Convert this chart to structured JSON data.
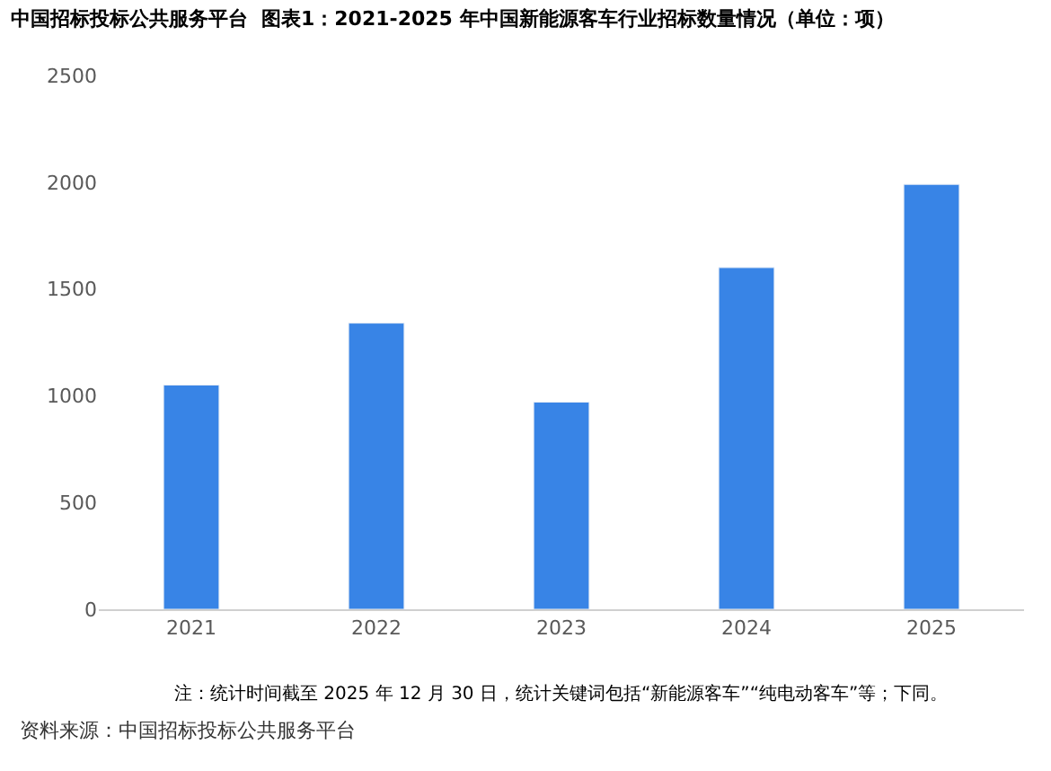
{
  "chart_data": {
    "type": "bar",
    "title": "中国招标投标公共服务平台  图表1：2021-2025 年中国新能源客车行业招标数量情况（单位：项）",
    "categories": [
      "2021",
      "2022",
      "2023",
      "2024",
      "2025"
    ],
    "values": [
      1050,
      1340,
      970,
      1600,
      1990
    ],
    "color": "#3884e6",
    "ylim": [
      0,
      2500
    ],
    "yticks": [
      0,
      500,
      1000,
      1500,
      2000,
      2500
    ],
    "legend": false,
    "annotations": [
      "注：统计时间截至 2025 年 12 月 30 日，统计关键词包括“新能源客车”“纯电动客车”等；下同。",
      "资料来源：中国招标投标公共服务平台"
    ]
  }
}
